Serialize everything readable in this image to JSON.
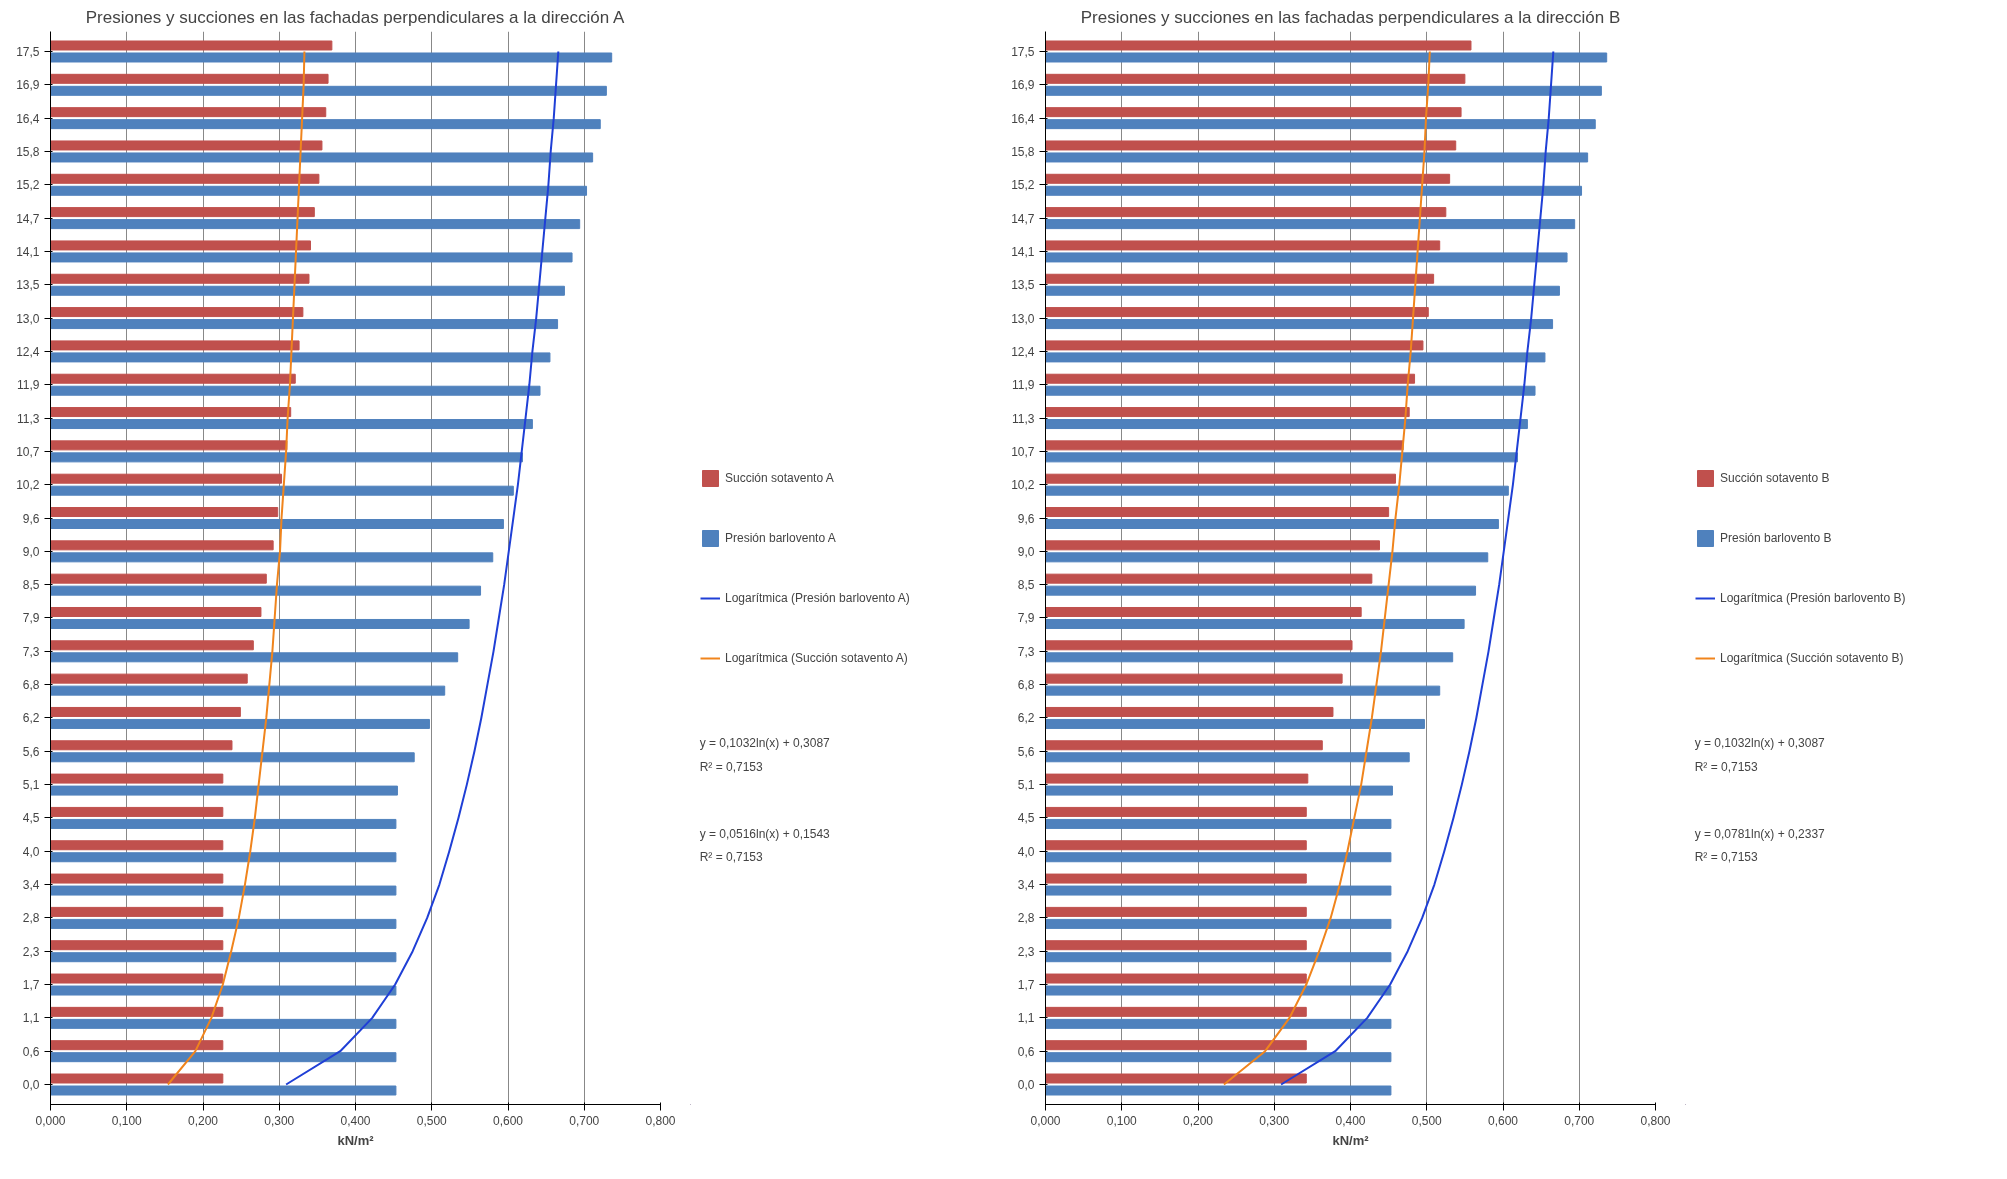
{
  "chart_data": [
    {
      "type": "bar",
      "orientation": "horizontal",
      "title": "Presiones y succiones en las fachadas perpendiculares a la dirección A",
      "xlabel": "kN/m²",
      "categories": [
        "17,5",
        "16,9",
        "16,4",
        "15,8",
        "15,2",
        "14,7",
        "14,1",
        "13,5",
        "13,0",
        "12,4",
        "11,9",
        "11,3",
        "10,7",
        "10,2",
        "9,6",
        "9,0",
        "8,5",
        "7,9",
        "7,3",
        "6,8",
        "6,2",
        "5,6",
        "5,1",
        "4,5",
        "4,0",
        "3,4",
        "2,8",
        "2,3",
        "1,7",
        "1,1",
        "0,6",
        "0,0"
      ],
      "series": [
        {
          "name": "Succión sotavento A",
          "color": "#c0504d",
          "values": [
            0.369,
            0.364,
            0.361,
            0.356,
            0.352,
            0.346,
            0.341,
            0.339,
            0.331,
            0.326,
            0.321,
            0.315,
            0.31,
            0.303,
            0.298,
            0.292,
            0.283,
            0.276,
            0.266,
            0.258,
            0.249,
            0.238,
            0.226,
            0.226,
            0.226,
            0.226,
            0.226,
            0.226,
            0.226,
            0.226,
            0.226,
            0.226
          ]
        },
        {
          "name": "Presión barlovento A",
          "color": "#4f81bd",
          "values": [
            0.736,
            0.729,
            0.721,
            0.711,
            0.703,
            0.694,
            0.684,
            0.674,
            0.665,
            0.655,
            0.642,
            0.632,
            0.619,
            0.607,
            0.594,
            0.58,
            0.564,
            0.549,
            0.534,
            0.517,
            0.497,
            0.477,
            0.455,
            0.453,
            0.453,
            0.453,
            0.453,
            0.453,
            0.453,
            0.453,
            0.453,
            0.453
          ]
        },
        {
          "name": "Logarítmica (Presión barlovento A)",
          "type": "line",
          "color": "#1f3fd6",
          "values": [
            0.666,
            0.663,
            0.66,
            0.656,
            0.653,
            0.649,
            0.645,
            0.641,
            0.637,
            0.632,
            0.628,
            0.623,
            0.618,
            0.613,
            0.607,
            0.601,
            0.595,
            0.588,
            0.581,
            0.573,
            0.565,
            0.556,
            0.546,
            0.535,
            0.523,
            0.51,
            0.494,
            0.475,
            0.452,
            0.422,
            0.38,
            0.309
          ]
        },
        {
          "name": "Logarítmica (Succión sotavento A)",
          "type": "line",
          "color": "#f0841c",
          "values": [
            0.333,
            0.332,
            0.33,
            0.328,
            0.326,
            0.324,
            0.322,
            0.32,
            0.318,
            0.316,
            0.314,
            0.311,
            0.309,
            0.306,
            0.303,
            0.301,
            0.297,
            0.294,
            0.291,
            0.287,
            0.283,
            0.278,
            0.273,
            0.268,
            0.262,
            0.255,
            0.247,
            0.237,
            0.226,
            0.211,
            0.19,
            0.154
          ]
        }
      ],
      "xlim": [
        0,
        0.8
      ],
      "xticks": [
        {
          "value": 0,
          "label": "0,000"
        },
        {
          "value": 0.1,
          "label": "0,100"
        },
        {
          "value": 0.2,
          "label": "0,200"
        },
        {
          "value": 0.3,
          "label": "0,300"
        },
        {
          "value": 0.4,
          "label": "0,400"
        },
        {
          "value": 0.5,
          "label": "0,500"
        },
        {
          "value": 0.6,
          "label": "0,600"
        },
        {
          "value": 0.7,
          "label": "0,700"
        },
        {
          "value": 0.8,
          "label": "0,800"
        }
      ],
      "grid": "x",
      "legend": "right",
      "annotations": [
        "y = 0,1032ln(x) + 0,3087",
        "R² = 0,7153",
        "y = 0,0516ln(x) + 0,1543",
        "R² = 0,7153"
      ]
    },
    {
      "type": "bar",
      "orientation": "horizontal",
      "title": "Presiones y succiones en las fachadas perpendiculares a la dirección B",
      "xlabel": "kN/m²",
      "categories": [
        "17,5",
        "16,9",
        "16,4",
        "15,8",
        "15,2",
        "14,7",
        "14,1",
        "13,5",
        "13,0",
        "12,4",
        "11,9",
        "11,3",
        "10,7",
        "10,2",
        "9,6",
        "9,0",
        "8,5",
        "7,9",
        "7,3",
        "6,8",
        "6,2",
        "5,6",
        "5,1",
        "4,5",
        "4,0",
        "3,4",
        "2,8",
        "2,3",
        "1,7",
        "1,1",
        "0,6",
        "0,0"
      ],
      "series": [
        {
          "name": "Succión sotavento B",
          "color": "#c0504d",
          "values": [
            0.558,
            0.55,
            0.545,
            0.538,
            0.53,
            0.525,
            0.517,
            0.509,
            0.502,
            0.495,
            0.484,
            0.477,
            0.469,
            0.459,
            0.45,
            0.438,
            0.428,
            0.414,
            0.402,
            0.389,
            0.377,
            0.363,
            0.344,
            0.342,
            0.342,
            0.342,
            0.342,
            0.342,
            0.342,
            0.342,
            0.342,
            0.342
          ]
        },
        {
          "name": "Presión barlovento B",
          "color": "#4f81bd",
          "values": [
            0.736,
            0.729,
            0.721,
            0.711,
            0.703,
            0.694,
            0.684,
            0.674,
            0.665,
            0.655,
            0.642,
            0.632,
            0.619,
            0.607,
            0.594,
            0.58,
            0.564,
            0.549,
            0.534,
            0.517,
            0.497,
            0.477,
            0.455,
            0.453,
            0.453,
            0.453,
            0.453,
            0.453,
            0.453,
            0.453,
            0.453,
            0.453
          ]
        },
        {
          "name": "Logarítmica (Presión barlovento B)",
          "type": "line",
          "color": "#1f3fd6",
          "values": [
            0.666,
            0.663,
            0.66,
            0.656,
            0.653,
            0.649,
            0.645,
            0.641,
            0.637,
            0.632,
            0.628,
            0.623,
            0.618,
            0.613,
            0.607,
            0.601,
            0.595,
            0.588,
            0.581,
            0.573,
            0.565,
            0.556,
            0.546,
            0.535,
            0.523,
            0.51,
            0.494,
            0.475,
            0.452,
            0.422,
            0.38,
            0.309
          ]
        },
        {
          "name": "Logarítmica (Succión sotavento B)",
          "type": "line",
          "color": "#f0841c",
          "values": [
            0.504,
            0.502,
            0.499,
            0.497,
            0.494,
            0.491,
            0.488,
            0.485,
            0.482,
            0.479,
            0.475,
            0.472,
            0.468,
            0.464,
            0.459,
            0.455,
            0.45,
            0.445,
            0.44,
            0.434,
            0.428,
            0.421,
            0.414,
            0.405,
            0.396,
            0.386,
            0.374,
            0.359,
            0.342,
            0.32,
            0.288,
            0.234
          ]
        }
      ],
      "xlim": [
        0,
        0.8
      ],
      "xticks": [
        {
          "value": 0,
          "label": "0,000"
        },
        {
          "value": 0.1,
          "label": "0,100"
        },
        {
          "value": 0.2,
          "label": "0,200"
        },
        {
          "value": 0.3,
          "label": "0,300"
        },
        {
          "value": 0.4,
          "label": "0,400"
        },
        {
          "value": 0.5,
          "label": "0,500"
        },
        {
          "value": 0.6,
          "label": "0,600"
        },
        {
          "value": 0.7,
          "label": "0,700"
        },
        {
          "value": 0.8,
          "label": "0,800"
        }
      ],
      "grid": "x",
      "legend": "right",
      "annotations": [
        "y = 0,1032ln(x) + 0,3087",
        "R² = 0,7153",
        "y = 0,0781ln(x) + 0,2337",
        "R² = 0,7153"
      ]
    }
  ]
}
